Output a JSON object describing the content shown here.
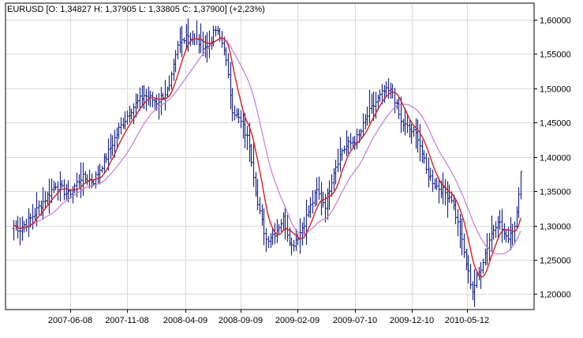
{
  "chart_data": {
    "type": "ohlc",
    "header": "EURUSD [O: 1,34827  H: 1,37905  L: 1,33805  C: 1,37900] (+2,23%)",
    "x_tick_labels": [
      "2007-06-08",
      "2007-11-08",
      "2008-04-09",
      "2008-09-09",
      "2009-02-09",
      "2009-07-10",
      "2009-12-10",
      "2010-05-12"
    ],
    "y_tick_labels": [
      "1,60000",
      "1,55000",
      "1,50000",
      "1,45000",
      "1,40000",
      "1,35000",
      "1,30000",
      "1,25000",
      "1,20000"
    ],
    "y_ticks": [
      1.6,
      1.55,
      1.5,
      1.45,
      1.4,
      1.35,
      1.3,
      1.25,
      1.2
    ],
    "ylim": [
      1.1775,
      1.6241
    ],
    "grid": true,
    "colors": {
      "bars": "#1f2a8c",
      "fast_ma": "#d42020",
      "slow_ma": "#c47ad8",
      "grid": "#d9d9d9",
      "axis": "#000000"
    },
    "price_anchors": [
      {
        "i": 0,
        "v": 1.3
      },
      {
        "i": 3,
        "v": 1.295
      },
      {
        "i": 8,
        "v": 1.31
      },
      {
        "i": 14,
        "v": 1.335
      },
      {
        "i": 20,
        "v": 1.36
      },
      {
        "i": 26,
        "v": 1.345
      },
      {
        "i": 32,
        "v": 1.37
      },
      {
        "i": 38,
        "v": 1.365
      },
      {
        "i": 44,
        "v": 1.4
      },
      {
        "i": 50,
        "v": 1.44
      },
      {
        "i": 56,
        "v": 1.47
      },
      {
        "i": 62,
        "v": 1.49
      },
      {
        "i": 68,
        "v": 1.48
      },
      {
        "i": 74,
        "v": 1.5
      },
      {
        "i": 78,
        "v": 1.56
      },
      {
        "i": 82,
        "v": 1.58
      },
      {
        "i": 86,
        "v": 1.57
      },
      {
        "i": 92,
        "v": 1.56
      },
      {
        "i": 96,
        "v": 1.585
      },
      {
        "i": 100,
        "v": 1.56
      },
      {
        "i": 104,
        "v": 1.47
      },
      {
        "i": 108,
        "v": 1.45
      },
      {
        "i": 112,
        "v": 1.42
      },
      {
        "i": 116,
        "v": 1.33
      },
      {
        "i": 120,
        "v": 1.28
      },
      {
        "i": 124,
        "v": 1.29
      },
      {
        "i": 128,
        "v": 1.31
      },
      {
        "i": 132,
        "v": 1.27
      },
      {
        "i": 136,
        "v": 1.29
      },
      {
        "i": 140,
        "v": 1.32
      },
      {
        "i": 144,
        "v": 1.35
      },
      {
        "i": 148,
        "v": 1.33
      },
      {
        "i": 152,
        "v": 1.38
      },
      {
        "i": 156,
        "v": 1.41
      },
      {
        "i": 160,
        "v": 1.42
      },
      {
        "i": 164,
        "v": 1.43
      },
      {
        "i": 168,
        "v": 1.46
      },
      {
        "i": 172,
        "v": 1.48
      },
      {
        "i": 176,
        "v": 1.495
      },
      {
        "i": 180,
        "v": 1.495
      },
      {
        "i": 184,
        "v": 1.45
      },
      {
        "i": 188,
        "v": 1.44
      },
      {
        "i": 192,
        "v": 1.43
      },
      {
        "i": 196,
        "v": 1.38
      },
      {
        "i": 200,
        "v": 1.36
      },
      {
        "i": 204,
        "v": 1.35
      },
      {
        "i": 208,
        "v": 1.34
      },
      {
        "i": 212,
        "v": 1.29
      },
      {
        "i": 216,
        "v": 1.23
      },
      {
        "i": 218,
        "v": 1.205
      },
      {
        "i": 222,
        "v": 1.24
      },
      {
        "i": 226,
        "v": 1.28
      },
      {
        "i": 230,
        "v": 1.31
      },
      {
        "i": 234,
        "v": 1.28
      },
      {
        "i": 238,
        "v": 1.3
      },
      {
        "i": 240,
        "v": 1.35
      },
      {
        "i": 241,
        "v": 1.379
      }
    ],
    "bar_count": 242,
    "fast_ma_period": 8,
    "slow_ma_period": 20
  }
}
